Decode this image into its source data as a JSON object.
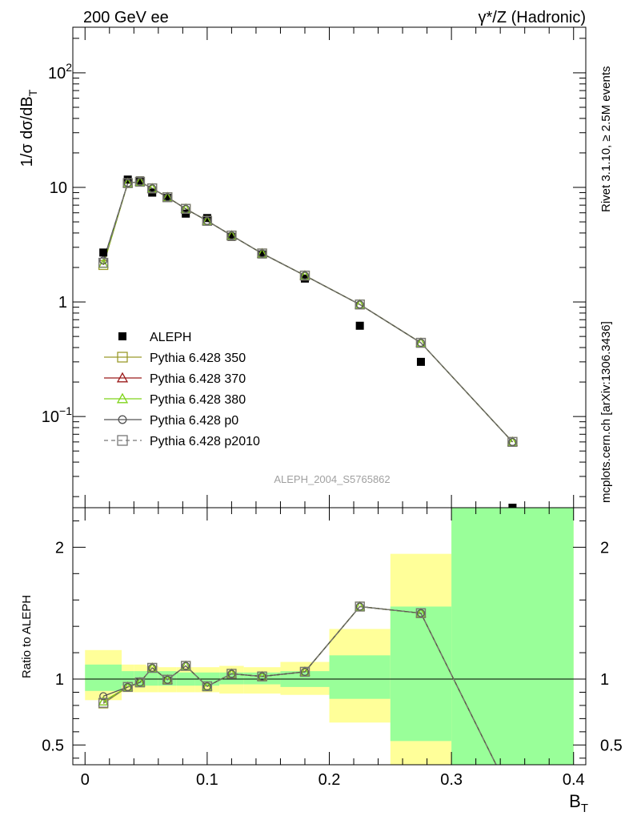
{
  "header": {
    "left": "200 GeV ee",
    "right": "γ*/Z (Hadronic)"
  },
  "side_text": {
    "top": "Rivet 3.1.10, ≥ 2.5M events",
    "bottom": "mcplots.cern.ch [arXiv:1306.3436]"
  },
  "watermark": "ALEPH_2004_S5765862",
  "chart_data": [
    {
      "type": "scatter",
      "panel": "main",
      "ylabel": "1/σ dσ/dB_T",
      "ylabel_parts": {
        "main": "1/σ  dσ/dB",
        "sub": "T"
      },
      "yscale": "log",
      "ylim": [
        0.016,
        250
      ],
      "xlim": [
        -0.01,
        0.41
      ],
      "yticks": [
        {
          "value": 100,
          "label": "10",
          "sup": "2"
        },
        {
          "value": 10,
          "label": "10",
          "sup": ""
        },
        {
          "value": 1,
          "label": "1",
          "sup": ""
        },
        {
          "value": 0.1,
          "label": "10",
          "sup": "−1"
        }
      ],
      "legend_position": "middle-left",
      "series": [
        {
          "name": "ALEPH",
          "color": "#000000",
          "marker": "filled-square",
          "line": "none",
          "x": [
            0.015,
            0.035,
            0.045,
            0.055,
            0.0675,
            0.0825,
            0.1,
            0.12,
            0.145,
            0.18,
            0.225,
            0.275,
            0.35
          ],
          "y": [
            2.7,
            11.7,
            11.5,
            9.0,
            8.1,
            5.9,
            5.4,
            3.7,
            2.6,
            1.6,
            0.62,
            0.3,
            0.016
          ]
        },
        {
          "name": "Pythia 6.428 350",
          "color": "#9a9a2b",
          "marker": "open-square",
          "line": "solid",
          "x": [
            0.015,
            0.035,
            0.045,
            0.055,
            0.0675,
            0.0825,
            0.1,
            0.12,
            0.145,
            0.18,
            0.225,
            0.275,
            0.35
          ],
          "y": [
            2.1,
            10.9,
            11.2,
            9.8,
            8.2,
            6.5,
            5.1,
            3.8,
            2.65,
            1.7,
            0.95,
            0.44,
            0.06
          ]
        },
        {
          "name": "Pythia 6.428 370",
          "color": "#9b1b1b",
          "marker": "open-triangle",
          "line": "solid",
          "x": [
            0.015,
            0.035,
            0.045,
            0.055,
            0.0675,
            0.0825,
            0.1,
            0.12,
            0.145,
            0.18,
            0.225,
            0.275,
            0.35
          ],
          "y": [
            2.15,
            10.9,
            11.2,
            9.8,
            8.2,
            6.5,
            5.1,
            3.8,
            2.65,
            1.7,
            0.95,
            0.44,
            0.06
          ]
        },
        {
          "name": "Pythia 6.428 380",
          "color": "#7fd41a",
          "marker": "open-triangle",
          "line": "solid",
          "x": [
            0.015,
            0.035,
            0.045,
            0.055,
            0.0675,
            0.0825,
            0.1,
            0.12,
            0.145,
            0.18,
            0.225,
            0.275,
            0.35
          ],
          "y": [
            2.15,
            10.9,
            11.2,
            9.8,
            8.2,
            6.5,
            5.1,
            3.8,
            2.65,
            1.7,
            0.95,
            0.44,
            0.06
          ]
        },
        {
          "name": "Pythia 6.428 p0",
          "color": "#555555",
          "marker": "open-circle",
          "line": "solid",
          "x": [
            0.015,
            0.035,
            0.045,
            0.055,
            0.0675,
            0.0825,
            0.1,
            0.12,
            0.145,
            0.18,
            0.225,
            0.275,
            0.35
          ],
          "y": [
            2.3,
            10.9,
            11.2,
            9.8,
            8.2,
            6.5,
            5.1,
            3.8,
            2.65,
            1.7,
            0.95,
            0.44,
            0.06
          ]
        },
        {
          "name": "Pythia 6.428 p2010",
          "color": "#777777",
          "marker": "open-square",
          "line": "dashed",
          "x": [
            0.015,
            0.035,
            0.045,
            0.055,
            0.0675,
            0.0825,
            0.1,
            0.12,
            0.145,
            0.18,
            0.225,
            0.275,
            0.35
          ],
          "y": [
            2.2,
            10.9,
            11.2,
            9.8,
            8.2,
            6.5,
            5.1,
            3.8,
            2.65,
            1.7,
            0.95,
            0.44,
            0.06
          ]
        }
      ]
    },
    {
      "type": "line",
      "panel": "ratio",
      "ylabel": "Ratio to ALEPH",
      "xlabel": "B_T",
      "xlabel_parts": {
        "main": "B",
        "sub": "T"
      },
      "ylim": [
        0.35,
        2.3
      ],
      "xlim": [
        -0.01,
        0.41
      ],
      "yticks": [
        0.5,
        1,
        2
      ],
      "ytick_labels": [
        "0.5",
        "1",
        "2"
      ],
      "xticks": [
        0,
        0.1,
        0.2,
        0.3,
        0.4
      ],
      "xtick_labels": [
        "0",
        "0.1",
        "0.2",
        "0.3",
        "0.4"
      ],
      "reference_line": 1,
      "bands": {
        "x_edges": [
          0,
          0.03,
          0.04,
          0.05,
          0.06,
          0.075,
          0.09,
          0.11,
          0.13,
          0.16,
          0.2,
          0.25,
          0.3,
          0.4
        ],
        "inner": [
          [
            0.91,
            1.11
          ],
          [
            0.95,
            1.06
          ],
          [
            0.95,
            1.06
          ],
          [
            0.95,
            1.06
          ],
          [
            0.95,
            1.06
          ],
          [
            0.95,
            1.05
          ],
          [
            0.95,
            1.05
          ],
          [
            0.96,
            1.05
          ],
          [
            0.96,
            1.05
          ],
          [
            0.94,
            1.06
          ],
          [
            0.85,
            1.18
          ],
          [
            0.53,
            1.55
          ],
          [
            0.3,
            2.4
          ]
        ],
        "outer": [
          [
            0.84,
            1.22
          ],
          [
            0.9,
            1.11
          ],
          [
            0.9,
            1.11
          ],
          [
            0.9,
            1.1
          ],
          [
            0.9,
            1.09
          ],
          [
            0.9,
            1.09
          ],
          [
            0.9,
            1.09
          ],
          [
            0.89,
            1.1
          ],
          [
            0.89,
            1.09
          ],
          [
            0.88,
            1.13
          ],
          [
            0.67,
            1.38
          ],
          [
            0.3,
            1.95
          ],
          [
            0.3,
            2.4
          ]
        ],
        "inner_color": "#99ff99",
        "outer_color": "#ffff99"
      },
      "series": [
        {
          "name": "Pythia 6.428 350",
          "color": "#9a9a2b",
          "marker": "open-square",
          "line": "solid",
          "x": [
            0.015,
            0.035,
            0.045,
            0.055,
            0.0675,
            0.0825,
            0.1,
            0.12,
            0.145,
            0.18,
            0.225,
            0.275,
            0.35
          ],
          "y": [
            0.815,
            0.94,
            0.975,
            1.085,
            0.995,
            1.1,
            0.945,
            1.04,
            1.02,
            1.055,
            1.55,
            1.5,
            0.1
          ]
        },
        {
          "name": "Pythia 6.428 370",
          "color": "#9b1b1b",
          "marker": "open-triangle",
          "line": "solid",
          "x": [
            0.015,
            0.035,
            0.045,
            0.055,
            0.0675,
            0.0825,
            0.1,
            0.12,
            0.145,
            0.18,
            0.225,
            0.275,
            0.35
          ],
          "y": [
            0.83,
            0.94,
            0.975,
            1.085,
            0.995,
            1.1,
            0.945,
            1.04,
            1.02,
            1.055,
            1.55,
            1.5,
            0.1
          ]
        },
        {
          "name": "Pythia 6.428 380",
          "color": "#7fd41a",
          "marker": "open-triangle",
          "line": "solid",
          "x": [
            0.015,
            0.035,
            0.045,
            0.055,
            0.0675,
            0.0825,
            0.1,
            0.12,
            0.145,
            0.18,
            0.225,
            0.275,
            0.35
          ],
          "y": [
            0.83,
            0.94,
            0.975,
            1.085,
            0.995,
            1.1,
            0.945,
            1.04,
            1.02,
            1.055,
            1.55,
            1.5,
            0.1
          ]
        },
        {
          "name": "Pythia 6.428 p0",
          "color": "#555555",
          "marker": "open-circle",
          "line": "solid",
          "x": [
            0.015,
            0.035,
            0.045,
            0.055,
            0.0675,
            0.0825,
            0.1,
            0.12,
            0.145,
            0.18,
            0.225,
            0.275,
            0.35
          ],
          "y": [
            0.87,
            0.94,
            0.975,
            1.085,
            0.995,
            1.1,
            0.945,
            1.04,
            1.02,
            1.055,
            1.55,
            1.5,
            0.1
          ]
        },
        {
          "name": "Pythia 6.428 p2010",
          "color": "#777777",
          "marker": "open-square",
          "line": "dashed",
          "x": [
            0.015,
            0.035,
            0.045,
            0.055,
            0.0675,
            0.0825,
            0.1,
            0.12,
            0.145,
            0.18,
            0.225,
            0.275,
            0.35
          ],
          "y": [
            0.82,
            0.94,
            0.975,
            1.085,
            0.995,
            1.1,
            0.945,
            1.04,
            1.02,
            1.055,
            1.55,
            1.5,
            0.1
          ]
        }
      ]
    }
  ]
}
